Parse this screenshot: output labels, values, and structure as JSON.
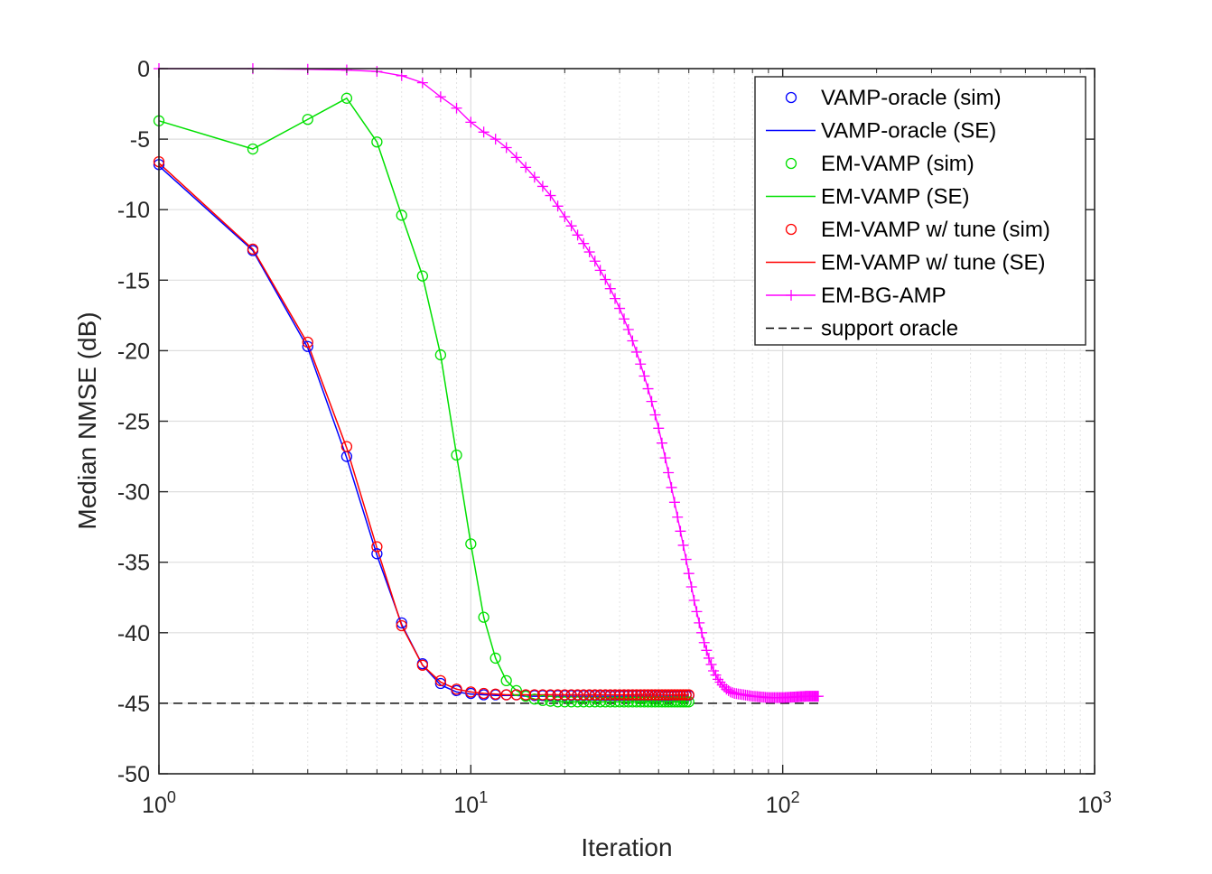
{
  "chart_data": {
    "type": "line",
    "xscale": "log",
    "xlim": [
      1,
      1000
    ],
    "ylim": [
      -50,
      0
    ],
    "xlabel": "Iteration",
    "ylabel": "Median NMSE (dB)",
    "grid": true,
    "legend_position": "top-right",
    "x_ticks": [
      {
        "base": "10",
        "exp": "0",
        "value": 1
      },
      {
        "base": "10",
        "exp": "1",
        "value": 10
      },
      {
        "base": "10",
        "exp": "2",
        "value": 100
      },
      {
        "base": "10",
        "exp": "3",
        "value": 1000
      }
    ],
    "y_ticks": [
      {
        "label": "0",
        "value": 0
      },
      {
        "label": "-5",
        "value": -5
      },
      {
        "label": "-10",
        "value": -10
      },
      {
        "label": "-15",
        "value": -15
      },
      {
        "label": "-20",
        "value": -20
      },
      {
        "label": "-25",
        "value": -25
      },
      {
        "label": "-30",
        "value": -30
      },
      {
        "label": "-35",
        "value": -35
      },
      {
        "label": "-40",
        "value": -40
      },
      {
        "label": "-45",
        "value": -45
      },
      {
        "label": "-50",
        "value": -50
      }
    ],
    "legend": [
      {
        "label": "VAMP-oracle (sim)",
        "color": "#0000ff",
        "line": "none",
        "marker": "circle"
      },
      {
        "label": "VAMP-oracle (SE)",
        "color": "#0000ff",
        "line": "solid",
        "marker": "none"
      },
      {
        "label": "EM-VAMP (sim)",
        "color": "#00e000",
        "line": "none",
        "marker": "circle"
      },
      {
        "label": "EM-VAMP (SE)",
        "color": "#00e000",
        "line": "solid",
        "marker": "none"
      },
      {
        "label": "EM-VAMP w/ tune (sim)",
        "color": "#ff0000",
        "line": "none",
        "marker": "circle"
      },
      {
        "label": "EM-VAMP w/ tune (SE)",
        "color": "#ff0000",
        "line": "solid",
        "marker": "none"
      },
      {
        "label": "EM-BG-AMP",
        "color": "#ff00ff",
        "line": "solid",
        "marker": "plus"
      },
      {
        "label": "support oracle",
        "color": "#000000",
        "line": "dashed",
        "marker": "none"
      }
    ],
    "series": [
      {
        "name": "VAMP-oracle (sim)",
        "color": "#0000ff",
        "kind": "markers",
        "marker": "circle",
        "x": [
          1,
          2,
          3,
          4,
          5,
          6,
          7,
          8,
          9,
          10,
          11,
          12,
          13,
          14,
          15,
          16,
          17,
          18,
          19,
          20,
          21,
          22,
          23,
          24,
          25,
          26,
          27,
          28,
          29,
          30,
          31,
          32,
          33,
          34,
          35,
          36,
          37,
          38,
          39,
          40,
          41,
          42,
          43,
          44,
          45,
          46,
          47,
          48,
          49,
          50
        ],
        "y": [
          -6.8,
          -12.9,
          -19.7,
          -27.5,
          -34.4,
          -39.3,
          -42.2,
          -43.6,
          -44.1,
          -44.3,
          -44.4,
          -44.4,
          -44.4,
          -44.4,
          -44.45,
          -44.45,
          -44.45,
          -44.45,
          -44.45,
          -44.45,
          -44.45,
          -44.45,
          -44.45,
          -44.45,
          -44.45,
          -44.45,
          -44.45,
          -44.45,
          -44.45,
          -44.45,
          -44.45,
          -44.45,
          -44.45,
          -44.45,
          -44.45,
          -44.45,
          -44.45,
          -44.45,
          -44.45,
          -44.45,
          -44.45,
          -44.45,
          -44.45,
          -44.45,
          -44.45,
          -44.45,
          -44.45,
          -44.45,
          -44.45,
          -44.45
        ]
      },
      {
        "name": "VAMP-oracle (SE)",
        "color": "#0000ff",
        "kind": "line",
        "x": [
          1,
          2,
          3,
          4,
          5,
          6,
          7,
          8,
          9,
          10,
          11,
          12,
          13,
          14,
          15,
          20,
          30,
          40,
          50
        ],
        "y": [
          -6.9,
          -12.9,
          -19.8,
          -27.6,
          -34.5,
          -39.4,
          -42.3,
          -43.7,
          -44.2,
          -44.35,
          -44.4,
          -44.45,
          -44.45,
          -44.45,
          -44.5,
          -44.5,
          -44.5,
          -44.5,
          -44.5
        ]
      },
      {
        "name": "EM-VAMP (sim)",
        "color": "#00e000",
        "kind": "markers",
        "marker": "circle",
        "x": [
          1,
          2,
          3,
          4,
          5,
          6,
          7,
          8,
          9,
          10,
          11,
          12,
          13,
          14,
          15,
          16,
          17,
          18,
          19,
          20,
          21,
          22,
          23,
          24,
          25,
          26,
          27,
          28,
          29,
          30,
          31,
          32,
          33,
          34,
          35,
          36,
          37,
          38,
          39,
          40,
          41,
          42,
          43,
          44,
          45,
          46,
          47,
          48,
          49,
          50
        ],
        "y": [
          -3.7,
          -5.7,
          -3.6,
          -2.1,
          -5.2,
          -10.4,
          -14.7,
          -20.3,
          -27.4,
          -33.7,
          -38.9,
          -41.8,
          -43.4,
          -44.1,
          -44.5,
          -44.7,
          -44.8,
          -44.85,
          -44.9,
          -44.9,
          -44.9,
          -44.9,
          -44.9,
          -44.9,
          -44.9,
          -44.9,
          -44.9,
          -44.9,
          -44.9,
          -44.9,
          -44.9,
          -44.9,
          -44.9,
          -44.9,
          -44.9,
          -44.9,
          -44.9,
          -44.9,
          -44.9,
          -44.9,
          -44.9,
          -44.9,
          -44.9,
          -44.9,
          -44.9,
          -44.9,
          -44.9,
          -44.9,
          -44.9,
          -44.9
        ]
      },
      {
        "name": "EM-VAMP (SE)",
        "color": "#00e000",
        "kind": "line",
        "x": [
          1,
          2,
          3,
          4,
          5,
          6,
          7,
          8,
          9,
          10,
          11,
          12,
          13,
          14,
          15,
          16,
          17,
          18,
          20,
          30,
          40,
          50
        ],
        "y": [
          -3.7,
          -5.7,
          -3.6,
          -2.1,
          -5.2,
          -10.4,
          -14.7,
          -20.3,
          -27.4,
          -33.7,
          -38.9,
          -41.8,
          -43.4,
          -44.1,
          -44.5,
          -44.7,
          -44.8,
          -44.85,
          -44.9,
          -44.9,
          -44.9,
          -44.9
        ]
      },
      {
        "name": "EM-VAMP w/ tune (sim)",
        "color": "#ff0000",
        "kind": "markers",
        "marker": "circle",
        "x": [
          1,
          2,
          3,
          4,
          5,
          6,
          7,
          8,
          9,
          10,
          11,
          12,
          13,
          14,
          15,
          16,
          17,
          18,
          19,
          20,
          21,
          22,
          23,
          24,
          25,
          26,
          27,
          28,
          29,
          30,
          31,
          32,
          33,
          34,
          35,
          36,
          37,
          38,
          39,
          40,
          41,
          42,
          43,
          44,
          45,
          46,
          47,
          48,
          49,
          50
        ],
        "y": [
          -6.6,
          -12.8,
          -19.4,
          -26.8,
          -33.9,
          -39.5,
          -42.3,
          -43.4,
          -44.0,
          -44.2,
          -44.3,
          -44.35,
          -44.4,
          -44.4,
          -44.4,
          -44.4,
          -44.4,
          -44.4,
          -44.4,
          -44.4,
          -44.4,
          -44.4,
          -44.4,
          -44.4,
          -44.4,
          -44.4,
          -44.4,
          -44.4,
          -44.4,
          -44.4,
          -44.4,
          -44.4,
          -44.4,
          -44.4,
          -44.4,
          -44.4,
          -44.4,
          -44.4,
          -44.4,
          -44.4,
          -44.4,
          -44.4,
          -44.4,
          -44.4,
          -44.4,
          -44.4,
          -44.4,
          -44.4,
          -44.4,
          -44.4
        ]
      },
      {
        "name": "EM-VAMP w/ tune (SE)",
        "color": "#ff0000",
        "kind": "line",
        "x": [
          1,
          2,
          3,
          4,
          5,
          6,
          7,
          8,
          9,
          10,
          11,
          12,
          13,
          14,
          15,
          20,
          30,
          40,
          50
        ],
        "y": [
          -6.7,
          -12.8,
          -19.5,
          -26.9,
          -34.0,
          -39.5,
          -42.3,
          -43.5,
          -44.0,
          -44.2,
          -44.3,
          -44.35,
          -44.4,
          -44.4,
          -44.4,
          -44.4,
          -44.4,
          -44.4,
          -44.4
        ]
      },
      {
        "name": "EM-BG-AMP",
        "color": "#ff00ff",
        "kind": "line-markers",
        "marker": "plus",
        "iterations": 130,
        "knots_x": [
          1,
          2,
          3,
          4,
          5,
          6,
          7,
          8,
          9,
          10,
          11,
          12,
          13,
          14,
          15,
          16,
          18,
          20,
          22,
          24,
          26,
          28,
          30,
          32,
          34,
          36,
          38,
          40,
          42,
          44,
          46,
          48,
          50,
          52,
          54,
          56,
          58,
          60,
          62,
          64,
          66,
          68,
          70,
          75,
          80,
          85,
          90,
          95,
          100,
          110,
          120,
          130
        ],
        "knots_y": [
          0,
          0,
          -0.05,
          -0.1,
          -0.2,
          -0.5,
          -1.0,
          -2.0,
          -2.8,
          -3.8,
          -4.5,
          -5.0,
          -5.6,
          -6.3,
          -7.0,
          -7.7,
          -9.0,
          -10.5,
          -11.8,
          -13.0,
          -14.3,
          -15.6,
          -17.0,
          -18.5,
          -20.1,
          -21.8,
          -23.6,
          -25.5,
          -27.6,
          -29.7,
          -31.8,
          -33.8,
          -35.8,
          -37.7,
          -39.3,
          -40.7,
          -41.8,
          -42.7,
          -43.3,
          -43.7,
          -44.0,
          -44.2,
          -44.3,
          -44.4,
          -44.5,
          -44.55,
          -44.6,
          -44.6,
          -44.6,
          -44.55,
          -44.5,
          -44.5
        ]
      },
      {
        "name": "support oracle",
        "color": "#000000",
        "kind": "dashed",
        "x": [
          1,
          130
        ],
        "y": [
          -45,
          -45
        ]
      }
    ]
  }
}
